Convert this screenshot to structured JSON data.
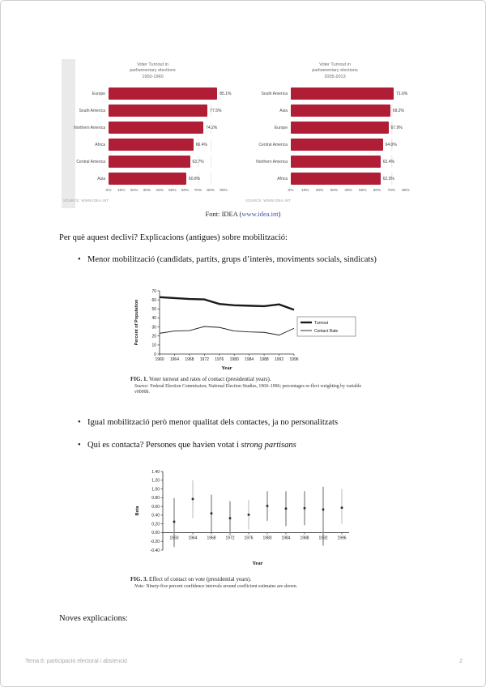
{
  "colors": {
    "bar": "#b01e36",
    "link": "#3f51a5"
  },
  "header_figure": {
    "source_caption": {
      "prefix": "Font: IDEA (",
      "link": "www.idea.int",
      "suffix": ")"
    }
  },
  "chart_data": [
    {
      "type": "bar",
      "orientation": "horizontal",
      "title_lines": [
        "Voter Turnout in",
        "parliamentary elections",
        "1950-1960"
      ],
      "categories": [
        "Europe",
        "South America",
        "Northern America",
        "Africa",
        "Central America",
        "Asia"
      ],
      "values": [
        85.1,
        77.5,
        74.2,
        66.4,
        63.7,
        60.8
      ],
      "value_labels": [
        "85.1%",
        "77.5%",
        "74.2%",
        "66.4%",
        "63.7%",
        "60.8%"
      ],
      "xticks": [
        "0%",
        "10%",
        "20%",
        "30%",
        "40%",
        "50%",
        "60%",
        "70%",
        "80%",
        "90%"
      ],
      "xmax": 90,
      "grid": true,
      "source": "Source: www.idea.int"
    },
    {
      "type": "bar",
      "orientation": "horizontal",
      "title_lines": [
        "Voter Turnout in",
        "parliamentary elections",
        "2005-2013"
      ],
      "categories": [
        "South America",
        "Asia",
        "Europe",
        "Central America",
        "Northern America",
        "Africa"
      ],
      "values": [
        71.6,
        69.2,
        67.9,
        64.0,
        62.4,
        62.3
      ],
      "value_labels": [
        "71.6%",
        "69.2%",
        "67.9%",
        "64.0%",
        "62.4%",
        "62.3%"
      ],
      "xticks": [
        "0%",
        "10%",
        "20%",
        "30%",
        "40%",
        "50%",
        "60%",
        "70%",
        "80%"
      ],
      "xmax": 80,
      "grid": true,
      "source": "Source: www.idea.int"
    },
    {
      "type": "line",
      "x": [
        1960,
        1964,
        1968,
        1972,
        1976,
        1980,
        1984,
        1988,
        1992,
        1996
      ],
      "series": [
        {
          "name": "Turnout",
          "values": [
            63,
            62,
            61,
            60.5,
            55.5,
            54,
            53.5,
            53,
            55,
            49
          ]
        },
        {
          "name": "Contact Rate",
          "values": [
            23,
            25.5,
            26,
            30.5,
            29.5,
            25.5,
            24.5,
            24,
            21,
            28.5
          ]
        }
      ],
      "xlabel": "Year",
      "ylabel": "Percent of Population",
      "ylim": [
        0,
        70
      ],
      "yticks": [
        0,
        10,
        20,
        30,
        40,
        50,
        60,
        70
      ],
      "legend_position": "right"
    },
    {
      "type": "scatter",
      "x": [
        1960,
        1964,
        1968,
        1972,
        1976,
        1980,
        1984,
        1988,
        1992,
        1996
      ],
      "points": [
        0.25,
        0.77,
        0.44,
        0.33,
        0.41,
        0.61,
        0.55,
        0.56,
        0.53,
        0.57
      ],
      "ci_low": [
        -0.33,
        0.33,
        0.01,
        -0.05,
        0.07,
        0.27,
        0.15,
        0.17,
        -0.3,
        0.2
      ],
      "ci_high": [
        0.79,
        1.2,
        0.87,
        0.72,
        0.75,
        0.95,
        0.95,
        0.95,
        1.05,
        1.0
      ],
      "ci_shade": [
        "dark",
        "light",
        "dark",
        "dark",
        "light",
        "dark",
        "dark",
        "dark",
        "dark",
        "light"
      ],
      "xlabel": "Year",
      "ylabel": "Beta",
      "ylim": [
        -0.4,
        1.4
      ],
      "ytick_labels": [
        "1.40",
        "1.20",
        "1.00",
        "0.80",
        "0.60",
        "0.40",
        "0.20",
        "0.00",
        "-0.20",
        "-0.40"
      ]
    }
  ],
  "body": {
    "intro": "Per què aquest declivi? Explicacions (antigues) sobre mobilització:",
    "bullet1": "Menor mobilització (candidats, partits, grups d’interès, moviments socials, sindicats)",
    "bullet2": "Igual mobilització però menor qualitat dels contactes, ja no personalitzats",
    "bullet3_prefix": "Qui es contacta? Persones que havien votat i ",
    "bullet3_italic": "strong partisans",
    "noves": "Noves explicacions:"
  },
  "fig1_caption": {
    "caption_bold": "FIG. 1.",
    "caption_rest": " Voter turnout and rates of contact (presidential years).",
    "note_italic": "Source:",
    "note_rest": " Federal Election Commission; National Election Studies, 1960–1996; percentages re-flect weighting by variable v0000b."
  },
  "fig3_caption": {
    "caption_bold": "FIG. 3.",
    "caption_rest": " Effect of contact on vote (presidential years).",
    "note_italic": "Note:",
    "note_rest": " Ninety-five percent confidence intervals around coefficient estimates are shown."
  },
  "footer": {
    "left": "Tema 6: participació electoral i abstenció",
    "page": "2"
  }
}
